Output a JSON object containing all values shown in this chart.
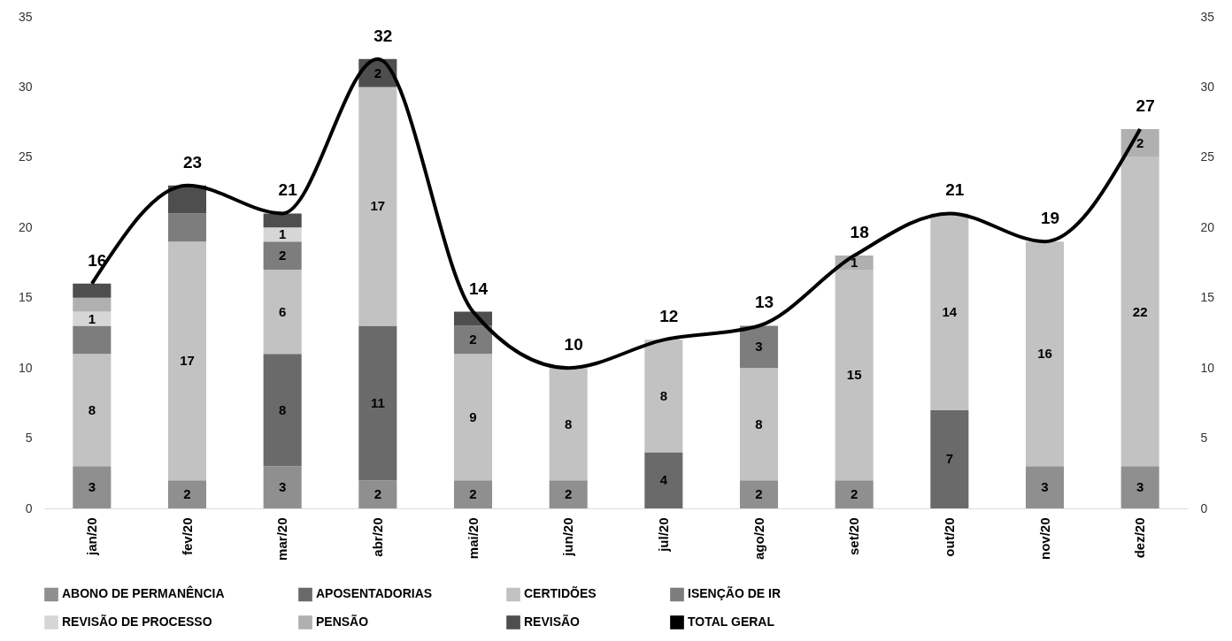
{
  "chart_data": {
    "type": "bar",
    "stacked": true,
    "categories": [
      "jan/20",
      "fev/20",
      "mar/20",
      "abr/20",
      "mai/20",
      "jun/20",
      "jul/20",
      "ago/20",
      "set/20",
      "out/20",
      "nov/20",
      "dez/20"
    ],
    "series": [
      {
        "name": "ABONO DE PERMANÊNCIA",
        "color": "#8f8f8f",
        "values": [
          3,
          2,
          3,
          2,
          2,
          2,
          null,
          2,
          2,
          null,
          3,
          3
        ],
        "value_labels": [
          "3",
          "2",
          "3",
          "2",
          "2",
          "2",
          null,
          "2",
          "2",
          null,
          "3",
          "3"
        ]
      },
      {
        "name": "APOSENTADORIAS",
        "color": "#6a6a6a",
        "values": [
          null,
          null,
          8,
          11,
          null,
          null,
          4,
          null,
          null,
          7,
          null,
          null
        ],
        "value_labels": [
          null,
          null,
          "8",
          "11",
          null,
          null,
          "4",
          null,
          null,
          "7",
          null,
          null
        ]
      },
      {
        "name": "CERTIDÕES",
        "color": "#c2c2c2",
        "values": [
          8,
          17,
          6,
          17,
          9,
          8,
          8,
          8,
          15,
          14,
          16,
          22
        ],
        "value_labels": [
          "8",
          "17",
          "6",
          "17",
          "9",
          "8",
          "8",
          "8",
          "15",
          "14",
          "16",
          "22"
        ]
      },
      {
        "name": "ISENÇÃO DE IR",
        "color": "#7d7d7d",
        "values": [
          2,
          2,
          2,
          null,
          2,
          null,
          null,
          3,
          null,
          null,
          null,
          null
        ],
        "value_labels": [
          null,
          null,
          "2",
          null,
          "2",
          null,
          null,
          "3",
          null,
          null,
          null,
          null
        ]
      },
      {
        "name": "REVISÃO DE PROCESSO",
        "color": "#d6d6d6",
        "values": [
          1,
          null,
          1,
          null,
          null,
          null,
          null,
          null,
          null,
          null,
          null,
          null
        ],
        "value_labels": [
          "1",
          null,
          "1",
          null,
          null,
          null,
          null,
          null,
          null,
          null,
          null,
          null
        ]
      },
      {
        "name": "PENSÃO",
        "color": "#b0b0b0",
        "values": [
          1,
          null,
          null,
          null,
          null,
          null,
          null,
          null,
          1,
          null,
          null,
          2
        ],
        "value_labels": [
          null,
          null,
          null,
          null,
          null,
          null,
          null,
          null,
          "1",
          null,
          null,
          "2"
        ]
      },
      {
        "name": "REVISÃO",
        "color": "#4e4e4e",
        "values": [
          1,
          2,
          1,
          2,
          1,
          null,
          null,
          null,
          null,
          null,
          null,
          null
        ],
        "value_labels": [
          null,
          null,
          null,
          "2",
          null,
          null,
          null,
          null,
          null,
          null,
          null,
          null
        ]
      },
      {
        "name": "TOTAL GERAL",
        "type": "line",
        "axis": "y2",
        "color": "#000000",
        "values": [
          16,
          23,
          21,
          32,
          14,
          10,
          12,
          13,
          18,
          21,
          19,
          27
        ],
        "value_labels": [
          "16",
          "23",
          "21",
          "32",
          "14",
          "10",
          "12",
          "13",
          "18",
          "21",
          "19",
          "27"
        ]
      }
    ],
    "ylim": [
      0,
      35
    ],
    "yticks": [
      0,
      5,
      10,
      15,
      20,
      25,
      30,
      35
    ],
    "y2lim": [
      0,
      35
    ],
    "y2ticks": [
      0,
      5,
      10,
      15,
      20,
      25,
      30,
      35
    ],
    "grid": false,
    "legend": "bottom",
    "marker": "none"
  }
}
